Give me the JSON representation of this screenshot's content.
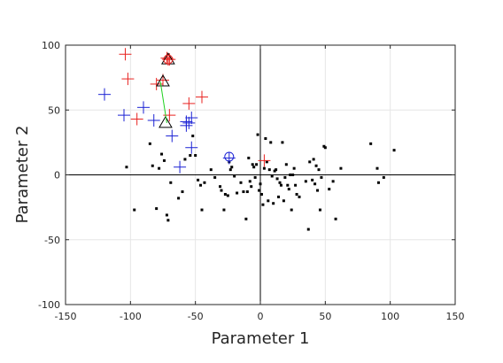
{
  "chart_data": {
    "type": "scatter",
    "xlabel": "Parameter 1",
    "ylabel": "Parameter 2",
    "xlim": [
      -150,
      150
    ],
    "ylim": [
      -100,
      100
    ],
    "x_ticks": [
      -150,
      -100,
      -50,
      0,
      50,
      100,
      150
    ],
    "y_ticks": [
      -100,
      -50,
      0,
      50,
      100
    ],
    "x_tick_labels": [
      "-150",
      "-100",
      "-50",
      "0",
      "50",
      "100",
      "150"
    ],
    "y_tick_labels": [
      "-100",
      "-50",
      "0",
      "50",
      "100"
    ],
    "grid": true,
    "zero_lines": true,
    "colors": {
      "red": "#e8221f",
      "blue": "#1b22d4",
      "black": "#000000",
      "green": "#1fd11f",
      "grid": "#e6e6e6",
      "axis": "#262626"
    },
    "series": [
      {
        "marker": "dot",
        "color": "#000000",
        "points": [
          [
            -103,
            6
          ],
          [
            -97,
            -27
          ],
          [
            -85,
            24
          ],
          [
            -83,
            7
          ],
          [
            -80,
            -26
          ],
          [
            -78,
            5
          ],
          [
            -76,
            16
          ],
          [
            -74,
            11
          ],
          [
            -72,
            -31
          ],
          [
            -71,
            -35
          ],
          [
            -69,
            -6
          ],
          [
            -63,
            -18
          ],
          [
            -60,
            -13
          ],
          [
            -58,
            12
          ],
          [
            -54,
            15
          ],
          [
            -52,
            30
          ],
          [
            -50,
            15
          ],
          [
            -48,
            -4
          ],
          [
            -46,
            -8
          ],
          [
            -45,
            -27
          ],
          [
            -43,
            -6
          ],
          [
            -38,
            4
          ],
          [
            -35,
            -2
          ],
          [
            -31,
            -9
          ],
          [
            -30,
            -12
          ],
          [
            -28,
            -27
          ],
          [
            -27,
            -15
          ],
          [
            -25,
            -16
          ],
          [
            -24,
            10
          ],
          [
            -23,
            4
          ],
          [
            -22,
            6
          ],
          [
            -20,
            -1
          ],
          [
            -18,
            -14
          ],
          [
            -15,
            -6
          ],
          [
            -13,
            -13
          ],
          [
            -11,
            -34
          ],
          [
            -10,
            -13
          ],
          [
            -9,
            13
          ],
          [
            -8,
            -5
          ],
          [
            -7,
            -9
          ],
          [
            -6,
            8
          ],
          [
            -5,
            6
          ],
          [
            -4,
            -2
          ],
          [
            -3,
            8
          ],
          [
            -2,
            31
          ],
          [
            -1,
            -12
          ],
          [
            0,
            -7
          ],
          [
            1,
            -15
          ],
          [
            2,
            -23
          ],
          [
            3,
            5
          ],
          [
            4,
            28
          ],
          [
            5,
            10
          ],
          [
            6,
            -20
          ],
          [
            7,
            4
          ],
          [
            8,
            25
          ],
          [
            9,
            -1
          ],
          [
            10,
            -22
          ],
          [
            11,
            3
          ],
          [
            12,
            4
          ],
          [
            13,
            -3
          ],
          [
            14,
            -17
          ],
          [
            15,
            -6
          ],
          [
            16,
            -8
          ],
          [
            17,
            25
          ],
          [
            18,
            -20
          ],
          [
            19,
            -2
          ],
          [
            20,
            8
          ],
          [
            21,
            -8
          ],
          [
            22,
            -11
          ],
          [
            23,
            0
          ],
          [
            24,
            -27
          ],
          [
            25,
            0
          ],
          [
            26,
            5
          ],
          [
            27,
            -8
          ],
          [
            28,
            -15
          ],
          [
            30,
            -17
          ],
          [
            35,
            -5
          ],
          [
            37,
            -42
          ],
          [
            38,
            10
          ],
          [
            40,
            -4
          ],
          [
            41,
            12
          ],
          [
            42,
            -7
          ],
          [
            43,
            7
          ],
          [
            44,
            -12
          ],
          [
            45,
            4
          ],
          [
            46,
            -27
          ],
          [
            47,
            -2
          ],
          [
            49,
            22
          ],
          [
            50,
            21
          ],
          [
            53,
            -11
          ],
          [
            56,
            -5
          ],
          [
            58,
            -34
          ],
          [
            62,
            5
          ],
          [
            85,
            24
          ],
          [
            90,
            5
          ],
          [
            91,
            -6
          ],
          [
            95,
            -2
          ],
          [
            103,
            19
          ]
        ]
      },
      {
        "marker": "plus",
        "color": "#e8221f",
        "points": [
          [
            -104,
            93
          ],
          [
            -102,
            74
          ],
          [
            -95,
            43
          ],
          [
            -80,
            70
          ],
          [
            -75,
            73
          ],
          [
            -72,
            90
          ],
          [
            -71,
            89
          ],
          [
            -70,
            89
          ],
          [
            -70,
            46
          ],
          [
            -55,
            55
          ],
          [
            -45,
            60
          ],
          [
            3,
            11
          ]
        ]
      },
      {
        "marker": "plus",
        "color": "#1b22d4",
        "points": [
          [
            -120,
            62
          ],
          [
            -105,
            46
          ],
          [
            -90,
            52
          ],
          [
            -82,
            42
          ],
          [
            -68,
            30
          ],
          [
            -62,
            6
          ],
          [
            -57,
            41
          ],
          [
            -57,
            38
          ],
          [
            -55,
            40
          ],
          [
            -53,
            44
          ],
          [
            -53,
            21
          ],
          [
            -24,
            13
          ]
        ]
      },
      {
        "marker": "triangle",
        "color": "#000000",
        "points": [
          [
            -73,
            40
          ],
          [
            -75,
            72
          ],
          [
            -71,
            89
          ]
        ]
      },
      {
        "marker": "circle",
        "color": "#1b22d4",
        "points": [
          [
            -24,
            14
          ]
        ]
      },
      {
        "marker": "circle",
        "color": "#e8221f",
        "points": [
          [
            -71,
            89
          ]
        ]
      },
      {
        "marker": "line",
        "color": "#1fd11f",
        "points": [
          [
            -77,
            72
          ],
          [
            -72,
            40
          ]
        ]
      }
    ]
  }
}
